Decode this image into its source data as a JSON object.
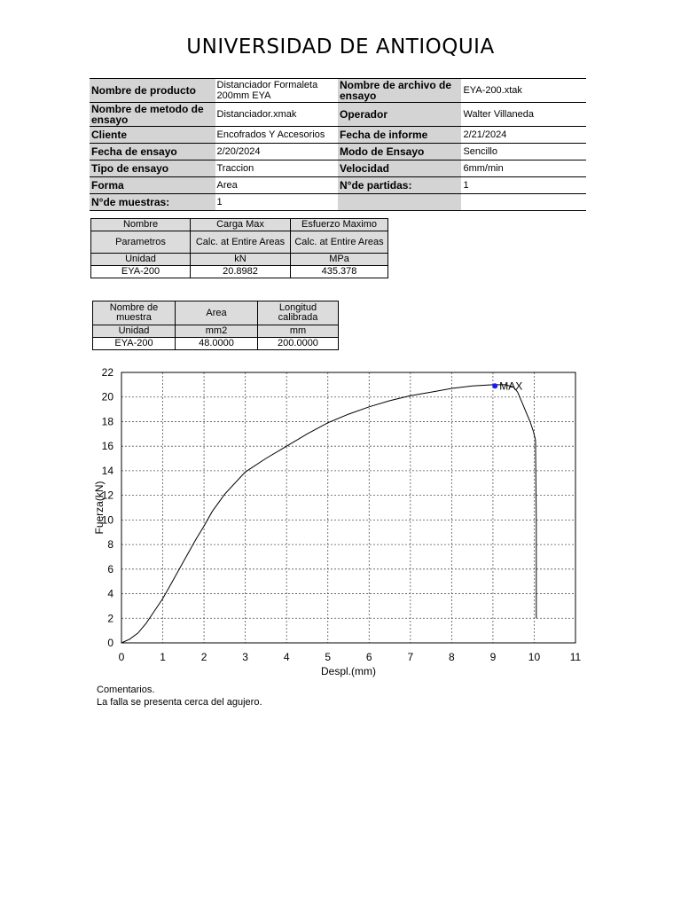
{
  "title": "UNIVERSIDAD DE ANTIOQUIA",
  "info_rows": [
    [
      "Nombre de producto",
      "Distanciador Formaleta 200mm EYA",
      "Nombre de archivo de ensayo",
      "EYA-200.xtak"
    ],
    [
      "Nombre de metodo de ensayo",
      "Distanciador.xmak",
      "Operador",
      "Walter Villaneda"
    ],
    [
      "Cliente",
      "Encofrados Y Accesorios",
      "Fecha de informe",
      "2/21/2024"
    ],
    [
      "Fecha de ensayo",
      "2/20/2024",
      "Modo de Ensayo",
      "Sencillo"
    ],
    [
      "Tipo de ensayo",
      "Traccion",
      "Velocidad",
      "6mm/min"
    ],
    [
      "Forma",
      "Area",
      "N°de partidas:",
      "1"
    ],
    [
      "N°de muestras:",
      "1",
      "",
      ""
    ]
  ],
  "results_table": {
    "rows": [
      [
        "Nombre",
        "Carga Max",
        "Esfuerzo Maximo"
      ],
      [
        "Parametros",
        "Calc. at Entire Areas",
        "Calc. at Entire Areas"
      ],
      [
        "Unidad",
        "kN",
        "MPa"
      ],
      [
        "EYA-200",
        "20.8982",
        "435.378"
      ]
    ]
  },
  "sample_table": {
    "rows": [
      [
        "Nombre de muestra",
        "Area",
        "Longitud calibrada"
      ],
      [
        "Unidad",
        "mm2",
        "mm"
      ],
      [
        "EYA-200",
        "48.0000",
        "200.0000"
      ]
    ]
  },
  "chart_data": {
    "type": "line",
    "xlabel": "Despl.(mm)",
    "ylabel": "Fuerza(kN)",
    "xlim": [
      0,
      11
    ],
    "ylim": [
      0,
      22
    ],
    "xticks": [
      0,
      1,
      2,
      3,
      4,
      5,
      6,
      7,
      8,
      9,
      10,
      11
    ],
    "yticks": [
      0,
      2,
      4,
      6,
      8,
      10,
      12,
      14,
      16,
      18,
      20,
      22
    ],
    "grid": true,
    "series": [
      {
        "x": [
          0,
          0.2,
          0.4,
          0.6,
          0.8,
          1.0,
          1.2,
          1.5,
          1.8,
          2.0,
          2.2,
          2.5,
          3.0,
          3.5,
          4.0,
          4.5,
          5.0,
          5.5,
          6.0,
          6.5,
          7.0,
          7.5,
          8.0,
          8.5,
          9.0,
          9.1,
          9.3,
          9.5,
          9.6,
          9.7,
          9.8,
          9.9,
          9.98,
          10.03,
          10.05,
          10.05
        ],
        "y": [
          0,
          0.3,
          0.8,
          1.6,
          2.6,
          3.6,
          4.8,
          6.6,
          8.4,
          9.5,
          10.7,
          12.1,
          13.9,
          15.0,
          16.0,
          17.0,
          17.9,
          18.6,
          19.2,
          19.7,
          20.1,
          20.4,
          20.7,
          20.9,
          21.0,
          21.0,
          21.0,
          20.8,
          20.4,
          19.6,
          18.8,
          18.0,
          17.2,
          16.5,
          10.0,
          2.0
        ]
      }
    ],
    "annotations": [
      {
        "label": "MAX",
        "x": 9.05,
        "y": 20.9
      }
    ]
  },
  "comments": {
    "heading": "Comentarios.",
    "text": "La falla se presenta cerca del agujero."
  }
}
